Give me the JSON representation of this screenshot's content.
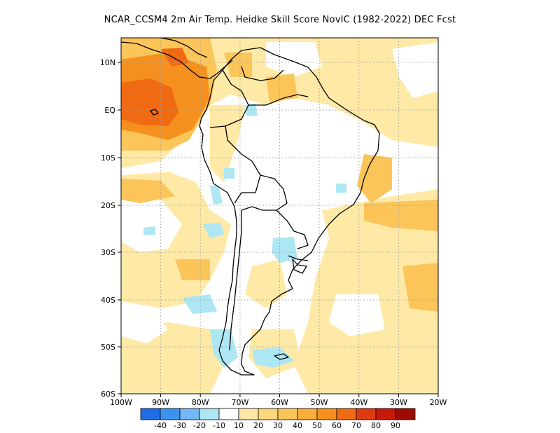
{
  "title": "NCAR_CCSM4  2m Air Temp. Heidke Skill Score NovIC (1982-2022) DEC Fcst",
  "map": {
    "lon_labels": [
      "100W",
      "90W",
      "80W",
      "70W",
      "60W",
      "50W",
      "40W",
      "30W",
      "20W"
    ],
    "lat_labels": [
      "10N",
      "EQ",
      "10S",
      "20S",
      "30S",
      "40S",
      "50S",
      "60S"
    ],
    "lon_range": [
      -100,
      -20
    ],
    "lat_range": [
      -60,
      14
    ],
    "gridlines": true,
    "colors": {
      "land_outline": "#000000",
      "gridline": "#a0a0a0",
      "positive_light": "#ffe9a6",
      "positive_mid": "#fcc55a",
      "positive_strong": "#f5901e",
      "positive_very_strong": "#f06a14",
      "negative_light": "#aee7f4"
    }
  },
  "colorbar": {
    "labels": [
      "-40",
      "-30",
      "-20",
      "-10",
      "10",
      "20",
      "30",
      "40",
      "50",
      "60",
      "70",
      "80",
      "90"
    ],
    "colors": [
      "#1f6ee8",
      "#3c93ef",
      "#74b7f5",
      "#aee7f4",
      "#ffffff",
      "#ffe9a6",
      "#fdd67e",
      "#fcc55a",
      "#fbad3a",
      "#f5901e",
      "#f06a14",
      "#e03a0f",
      "#c81a0a",
      "#a00a05"
    ]
  }
}
